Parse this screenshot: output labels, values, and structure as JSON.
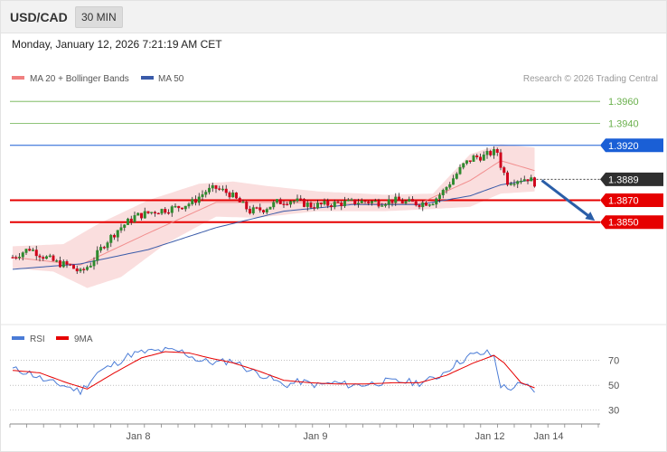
{
  "header": {
    "pair": "USD/CAD",
    "timeframe": "30 MIN",
    "datetime": "Monday, January 12, 2026 7:21:19 AM CET"
  },
  "legend": {
    "bollinger": "MA 20 + Bollinger Bands",
    "ma50": "MA 50",
    "credit": "Research © 2026 Trading Central"
  },
  "rsi_legend": {
    "rsi": "RSI",
    "ma9": "9MA"
  },
  "colors": {
    "up": "#2e8b2e",
    "down": "#d0021b",
    "bollinger_fill": "#f9dada",
    "ma20": "#f08080",
    "ma50": "#3a5ba9",
    "resistance_blue": "#1a5fd6",
    "support_red": "#e60000",
    "target_green": "#6ab04c",
    "rsi_line": "#4a7bd6",
    "rsi_ma": "#e60000",
    "arrow": "#2a5ea8"
  },
  "chart_data": [
    {
      "type": "candlestick",
      "title": "",
      "x_ticks": [
        "Jan 8",
        "Jan 9",
        "Jan 12",
        "Jan 14"
      ],
      "y_range": [
        1.376,
        1.3975
      ],
      "levels": [
        {
          "value": 1.396,
          "label": "1.3960",
          "style": "target",
          "kind": "green"
        },
        {
          "value": 1.394,
          "label": "1.3940",
          "style": "target",
          "kind": "green"
        },
        {
          "value": 1.392,
          "label": "1.3920",
          "style": "resistance",
          "kind": "blue"
        },
        {
          "value": 1.3889,
          "label": "1.3889",
          "style": "current",
          "kind": "dark"
        },
        {
          "value": 1.387,
          "label": "1.3870",
          "style": "support",
          "kind": "red"
        },
        {
          "value": 1.385,
          "label": "1.3850",
          "style": "support",
          "kind": "red"
        }
      ],
      "forecast_arrow": {
        "from": 1.3888,
        "to": 1.385,
        "direction": "down"
      },
      "price_anchors": [
        [
          0,
          1.3818
        ],
        [
          5,
          1.3826
        ],
        [
          9,
          1.3819
        ],
        [
          13,
          1.3813
        ],
        [
          17,
          1.381
        ],
        [
          20,
          1.3804
        ],
        [
          23,
          1.3812
        ],
        [
          27,
          1.383
        ],
        [
          31,
          1.3843
        ],
        [
          36,
          1.3855
        ],
        [
          42,
          1.386
        ],
        [
          48,
          1.3863
        ],
        [
          53,
          1.3868
        ],
        [
          57,
          1.3878
        ],
        [
          60,
          1.3881
        ],
        [
          64,
          1.3876
        ],
        [
          67,
          1.3868
        ],
        [
          70,
          1.386
        ],
        [
          74,
          1.3862
        ],
        [
          78,
          1.3868
        ],
        [
          82,
          1.387
        ],
        [
          85,
          1.3868
        ],
        [
          88,
          1.3865
        ],
        [
          92,
          1.3866
        ],
        [
          96,
          1.3867
        ],
        [
          100,
          1.3868
        ],
        [
          104,
          1.3869
        ],
        [
          108,
          1.3868
        ],
        [
          112,
          1.387
        ],
        [
          116,
          1.3868
        ],
        [
          120,
          1.3867
        ],
        [
          124,
          1.3869
        ],
        [
          127,
          1.3878
        ],
        [
          130,
          1.389
        ],
        [
          133,
          1.3902
        ],
        [
          136,
          1.3909
        ],
        [
          139,
          1.391
        ],
        [
          141,
          1.3913
        ],
        [
          143,
          1.3914
        ],
        [
          144,
          1.3902
        ],
        [
          146,
          1.3887
        ],
        [
          149,
          1.3889
        ],
        [
          152,
          1.389
        ],
        [
          154,
          1.3886
        ]
      ],
      "ma20_path": [
        [
          0,
          1.3818
        ],
        [
          20,
          1.3811
        ],
        [
          40,
          1.384
        ],
        [
          60,
          1.3868
        ],
        [
          80,
          1.3868
        ],
        [
          100,
          1.3867
        ],
        [
          120,
          1.3867
        ],
        [
          135,
          1.3888
        ],
        [
          144,
          1.3906
        ],
        [
          154,
          1.3897
        ]
      ],
      "ma50_path": [
        [
          0,
          1.3807
        ],
        [
          20,
          1.3812
        ],
        [
          40,
          1.3825
        ],
        [
          60,
          1.3845
        ],
        [
          80,
          1.386
        ],
        [
          100,
          1.3866
        ],
        [
          120,
          1.3866
        ],
        [
          135,
          1.3874
        ],
        [
          144,
          1.3884
        ],
        [
          154,
          1.3889
        ]
      ],
      "bollinger_upper": [
        [
          0,
          1.3828
        ],
        [
          15,
          1.383
        ],
        [
          25,
          1.3848
        ],
        [
          40,
          1.387
        ],
        [
          55,
          1.3885
        ],
        [
          65,
          1.3887
        ],
        [
          75,
          1.3883
        ],
        [
          90,
          1.3878
        ],
        [
          110,
          1.3875
        ],
        [
          124,
          1.3876
        ],
        [
          135,
          1.3912
        ],
        [
          144,
          1.3921
        ],
        [
          154,
          1.3918
        ]
      ],
      "bollinger_lower": [
        [
          0,
          1.3808
        ],
        [
          12,
          1.3805
        ],
        [
          22,
          1.379
        ],
        [
          32,
          1.38
        ],
        [
          45,
          1.383
        ],
        [
          60,
          1.3855
        ],
        [
          72,
          1.3854
        ],
        [
          90,
          1.386
        ],
        [
          110,
          1.386
        ],
        [
          124,
          1.3862
        ],
        [
          135,
          1.3864
        ],
        [
          144,
          1.3876
        ],
        [
          154,
          1.3878
        ]
      ]
    },
    {
      "type": "line",
      "title": "RSI",
      "y_ticks": [
        70,
        50,
        30
      ],
      "y_range": [
        24,
        85
      ],
      "series": [
        {
          "name": "RSI",
          "points": [
            [
              0,
              63
            ],
            [
              5,
              60
            ],
            [
              10,
              53
            ],
            [
              15,
              50
            ],
            [
              20,
              45
            ],
            [
              25,
              60
            ],
            [
              30,
              67
            ],
            [
              35,
              75
            ],
            [
              40,
              77
            ],
            [
              45,
              78
            ],
            [
              50,
              77
            ],
            [
              55,
              70
            ],
            [
              60,
              68
            ],
            [
              65,
              70
            ],
            [
              70,
              62
            ],
            [
              75,
              57
            ],
            [
              80,
              50
            ],
            [
              85,
              53
            ],
            [
              90,
              50
            ],
            [
              95,
              52
            ],
            [
              100,
              50
            ],
            [
              105,
              51
            ],
            [
              110,
              53
            ],
            [
              115,
              53
            ],
            [
              120,
              52
            ],
            [
              125,
              56
            ],
            [
              130,
              66
            ],
            [
              135,
              74
            ],
            [
              140,
              76
            ],
            [
              142,
              73
            ],
            [
              144,
              50
            ],
            [
              146,
              47
            ],
            [
              149,
              50
            ],
            [
              152,
              49
            ],
            [
              154,
              46
            ]
          ]
        },
        {
          "name": "9MA",
          "points": [
            [
              0,
              62
            ],
            [
              8,
              60
            ],
            [
              16,
              52
            ],
            [
              22,
              47
            ],
            [
              30,
              60
            ],
            [
              38,
              72
            ],
            [
              45,
              77
            ],
            [
              52,
              76
            ],
            [
              58,
              72
            ],
            [
              65,
              68
            ],
            [
              72,
              62
            ],
            [
              80,
              54
            ],
            [
              88,
              52
            ],
            [
              96,
              51
            ],
            [
              104,
              51
            ],
            [
              112,
              52
            ],
            [
              120,
              52
            ],
            [
              128,
              58
            ],
            [
              136,
              68
            ],
            [
              142,
              74
            ],
            [
              145,
              68
            ],
            [
              150,
              52
            ],
            [
              154,
              48
            ]
          ]
        }
      ]
    }
  ]
}
